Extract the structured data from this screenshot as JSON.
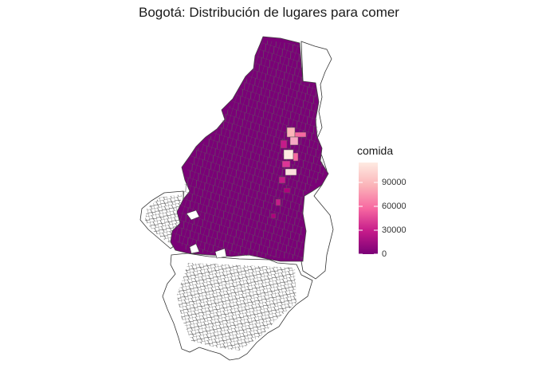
{
  "title": "Bogotá: Distribución de lugares para comer",
  "legend": {
    "title": "comida",
    "ticks": [
      "90000",
      "60000",
      "30000",
      "0"
    ],
    "tick_values": [
      90000,
      60000,
      30000,
      0
    ],
    "range": [
      0,
      115000
    ],
    "gradient_colors": [
      "#7a0177",
      "#c51b8a",
      "#f768a1",
      "#fbb4b9",
      "#feebe2"
    ]
  },
  "colors": {
    "base_fill": "#7a0177",
    "border": "#555555",
    "outline": "#333333"
  }
}
